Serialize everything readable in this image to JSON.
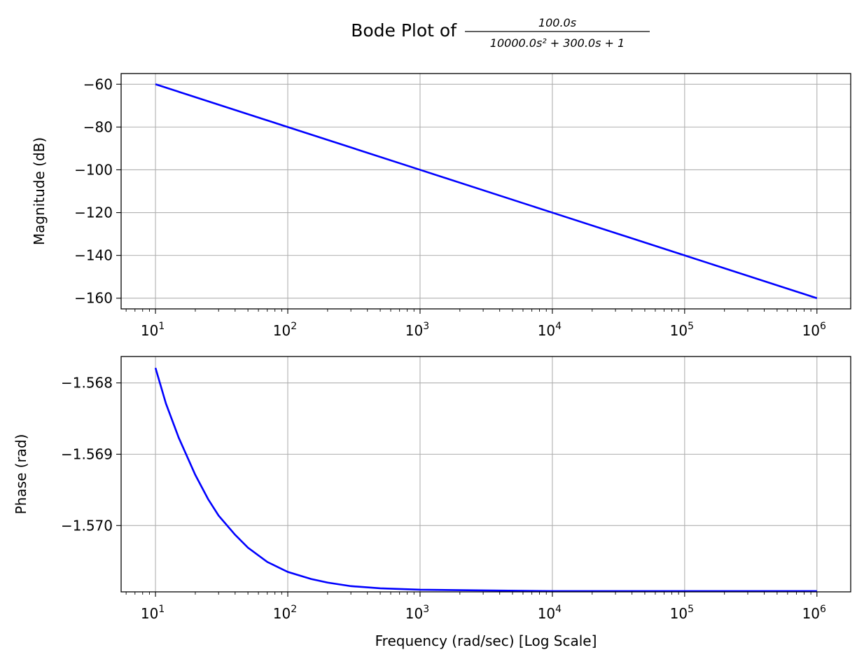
{
  "chart_data": [
    {
      "type": "line",
      "panel": "magnitude",
      "title": "Bode Plot of",
      "title_fraction": {
        "numerator": "100.0s",
        "denominator": "10000.0s² + 300.0s + 1"
      },
      "xlabel": "",
      "ylabel": "Magnitude (dB)",
      "xscale": "log",
      "xlim": [
        5.5,
        1800000
      ],
      "ylim": [
        -165,
        -55
      ],
      "grid": true,
      "x_ticks": [
        {
          "value": 10,
          "base": "10",
          "exp": "1"
        },
        {
          "value": 100,
          "base": "10",
          "exp": "2"
        },
        {
          "value": 1000,
          "base": "10",
          "exp": "3"
        },
        {
          "value": 10000,
          "base": "10",
          "exp": "4"
        },
        {
          "value": 100000,
          "base": "10",
          "exp": "5"
        },
        {
          "value": 1000000,
          "base": "10",
          "exp": "6"
        }
      ],
      "y_ticks": [
        {
          "value": -60,
          "label": "−60"
        },
        {
          "value": -80,
          "label": "−80"
        },
        {
          "value": -100,
          "label": "−100"
        },
        {
          "value": -120,
          "label": "−120"
        },
        {
          "value": -140,
          "label": "−140"
        },
        {
          "value": -160,
          "label": "−160"
        }
      ],
      "series": [
        {
          "name": "magnitude",
          "color": "#0000ff",
          "x": [
            10,
            100,
            1000,
            10000,
            100000,
            1000000
          ],
          "y": [
            -60,
            -80,
            -100,
            -120,
            -140,
            -160
          ]
        }
      ]
    },
    {
      "type": "line",
      "panel": "phase",
      "xlabel": "Frequency (rad/sec) [Log Scale]",
      "ylabel": "Phase (rad)",
      "xscale": "log",
      "xlim": [
        5.5,
        1800000
      ],
      "ylim": [
        -1.57093,
        -1.56763
      ],
      "grid": true,
      "x_ticks": [
        {
          "value": 10,
          "base": "10",
          "exp": "1"
        },
        {
          "value": 100,
          "base": "10",
          "exp": "2"
        },
        {
          "value": 1000,
          "base": "10",
          "exp": "3"
        },
        {
          "value": 10000,
          "base": "10",
          "exp": "4"
        },
        {
          "value": 100000,
          "base": "10",
          "exp": "5"
        },
        {
          "value": 1000000,
          "base": "10",
          "exp": "6"
        }
      ],
      "y_ticks": [
        {
          "value": -1.568,
          "label": "−1.568"
        },
        {
          "value": -1.569,
          "label": "−1.569"
        },
        {
          "value": -1.57,
          "label": "−1.570"
        }
      ],
      "series": [
        {
          "name": "phase",
          "color": "#0000ff",
          "x": [
            10,
            12,
            15,
            20,
            25,
            30,
            40,
            50,
            70,
            100,
            150,
            200,
            300,
            500,
            1000,
            3000,
            10000,
            100000,
            1000000
          ],
          "y": [
            -1.56779,
            -1.56829,
            -1.56877,
            -1.56929,
            -1.56963,
            -1.56986,
            -1.57013,
            -1.57031,
            -1.57051,
            -1.57065,
            -1.57075,
            -1.5708,
            -1.57085,
            -1.57088,
            -1.5709,
            -1.57091,
            -1.57092,
            -1.57092,
            -1.57092
          ]
        }
      ]
    }
  ]
}
